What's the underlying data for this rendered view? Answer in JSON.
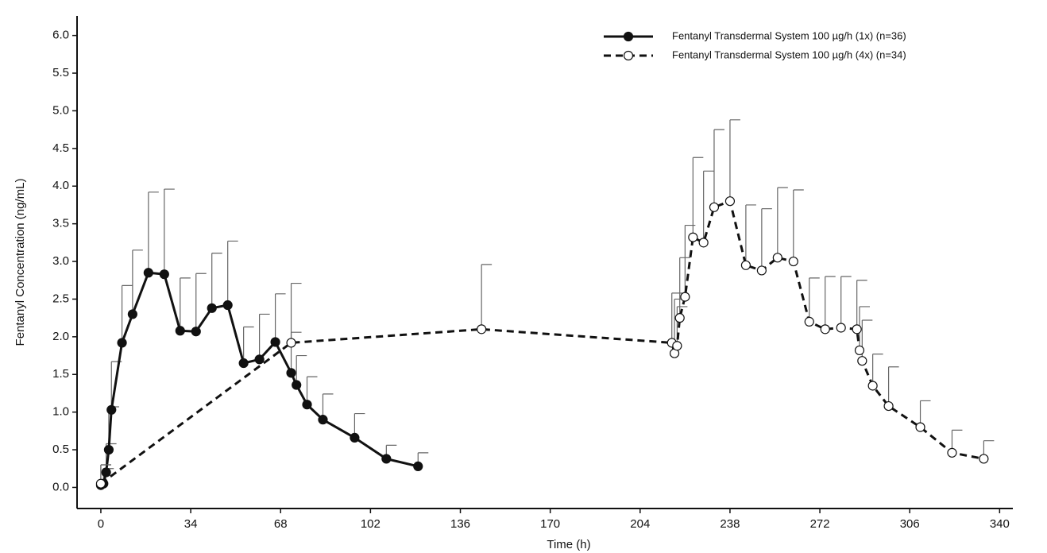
{
  "chart_data": {
    "type": "line",
    "x_label": "Time (h)",
    "y_label": "Fentanyl Concentration (ng/mL)",
    "xlim": [
      -9,
      345
    ],
    "ylim": [
      -0.28,
      6.26
    ],
    "xticks": [
      0,
      34,
      68,
      102,
      136,
      170,
      204,
      238,
      272,
      306,
      340
    ],
    "yticks": [
      {
        "value": 0,
        "label": "0.0"
      },
      {
        "value": 0.5,
        "label": "0.5"
      },
      {
        "value": 1,
        "label": "1.0"
      },
      {
        "value": 1.5,
        "label": "1.5"
      },
      {
        "value": 2,
        "label": "2.0"
      },
      {
        "value": 2.5,
        "label": "2.5"
      },
      {
        "value": 3,
        "label": "3.0"
      },
      {
        "value": 3.5,
        "label": "3.5"
      },
      {
        "value": 4,
        "label": "4.0"
      },
      {
        "value": 4.5,
        "label": "4.5"
      },
      {
        "value": 5,
        "label": "5.0"
      },
      {
        "value": 5.5,
        "label": "5.5"
      },
      {
        "value": 6,
        "label": "6.0"
      }
    ],
    "legend": "upper right",
    "series": [
      {
        "name": "Fentanyl Transdermal System 100 µg/h (1x) (n=36)",
        "color": "#111111",
        "marker": "filled",
        "dashed": false,
        "x": [
          0,
          1,
          2,
          3,
          4,
          8,
          12,
          18,
          24,
          30,
          36,
          42,
          48,
          54,
          60,
          66,
          72,
          74,
          78,
          84,
          96,
          108,
          120
        ],
        "values": [
          0.03,
          0.05,
          0.2,
          0.5,
          1.03,
          1.92,
          2.3,
          2.85,
          2.83,
          2.08,
          2.07,
          2.38,
          2.42,
          1.65,
          1.7,
          1.93,
          1.52,
          1.36,
          1.1,
          0.9,
          0.66,
          0.38,
          0.28
        ],
        "error": [
          0.27,
          0.2,
          0.38,
          0.57,
          0.64,
          0.76,
          0.85,
          1.07,
          1.13,
          0.7,
          0.77,
          0.73,
          0.85,
          0.48,
          0.6,
          0.64,
          0.54,
          0.39,
          0.37,
          0.34,
          0.32,
          0.18,
          0.18
        ]
      },
      {
        "name": "Fentanyl Transdermal System 100 µg/h (4x) (n=34)",
        "color": "#111111",
        "marker": "open",
        "dashed": true,
        "x": [
          0,
          72,
          144,
          216,
          217,
          218,
          219,
          221,
          224,
          228,
          232,
          238,
          244,
          250,
          256,
          262,
          268,
          274,
          280,
          286,
          287,
          288,
          292,
          298,
          310,
          322,
          334
        ],
        "values": [
          0.05,
          1.92,
          2.1,
          1.92,
          1.78,
          1.88,
          2.25,
          2.53,
          3.32,
          3.25,
          3.72,
          3.8,
          2.95,
          2.88,
          3.05,
          3.0,
          2.2,
          2.1,
          2.12,
          2.1,
          1.82,
          1.68,
          1.35,
          1.08,
          0.8,
          0.46,
          0.38
        ],
        "error": [
          0.25,
          0.79,
          0.86,
          0.66,
          0.72,
          0.52,
          0.8,
          0.95,
          1.06,
          0.95,
          1.03,
          1.08,
          0.8,
          0.82,
          0.93,
          0.95,
          0.58,
          0.7,
          0.68,
          0.65,
          0.58,
          0.54,
          0.42,
          0.52,
          0.35,
          0.3,
          0.24
        ]
      }
    ]
  }
}
